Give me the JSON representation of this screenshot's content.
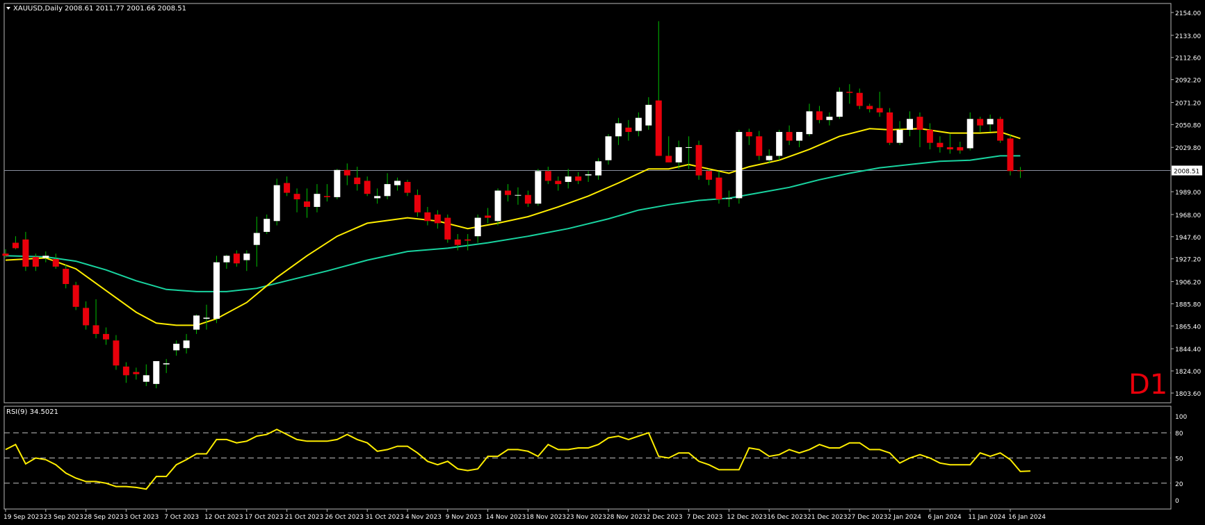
{
  "symbol_header": "XAUUSD,Daily  2008.61 2011.77 2001.66 2008.51",
  "timeframe_label": "D1",
  "rsi_header": "RSI(9) 34.5021",
  "colors": {
    "background": "#000000",
    "bull_candle": "#ffffff",
    "bear_candle": "#e8000b",
    "wick": "#00c000",
    "ma_fast": "#ffee00",
    "ma_slow": "#19d4a0",
    "rsi_line": "#ffee00",
    "grid_line": "#c0c0c0",
    "axis_text": "#ffffff",
    "timeframe_text": "#e8000b"
  },
  "chart_data": [
    {
      "type": "candlestick",
      "title": "XAUUSD,Daily",
      "ohlc_header": [
        2008.61,
        2011.77,
        2001.66,
        2008.51
      ],
      "current_price_label": "2008.51",
      "ylim": [
        1803.6,
        2154.0
      ],
      "y_ticks": [
        "2154.00",
        "2133.00",
        "2112.60",
        "2092.20",
        "2071.20",
        "2050.80",
        "2029.80",
        "2008.51",
        "1989.00",
        "1968.00",
        "1947.60",
        "1927.20",
        "1906.20",
        "1885.80",
        "1865.40",
        "1844.40",
        "1824.00",
        "1803.60"
      ],
      "x_tick_labels": [
        {
          "label": "19 Sep 2023",
          "index": 0
        },
        {
          "label": "23 Sep 2023",
          "index": 4
        },
        {
          "label": "28 Sep 2023",
          "index": 8
        },
        {
          "label": "3 Oct 2023",
          "index": 12
        },
        {
          "label": "7 Oct 2023",
          "index": 16
        },
        {
          "label": "12 Oct 2023",
          "index": 20
        },
        {
          "label": "17 Oct 2023",
          "index": 24
        },
        {
          "label": "21 Oct 2023",
          "index": 28
        },
        {
          "label": "26 Oct 2023",
          "index": 32
        },
        {
          "label": "31 Oct 2023",
          "index": 36
        },
        {
          "label": "4 Nov 2023",
          "index": 40
        },
        {
          "label": "9 Nov 2023",
          "index": 44
        },
        {
          "label": "14 Nov 2023",
          "index": 48
        },
        {
          "label": "18 Nov 2023",
          "index": 52
        },
        {
          "label": "23 Nov 2023",
          "index": 56
        },
        {
          "label": "28 Nov 2023",
          "index": 60
        },
        {
          "label": "2 Dec 2023",
          "index": 64
        },
        {
          "label": "7 Dec 2023",
          "index": 68
        },
        {
          "label": "12 Dec 2023",
          "index": 72
        },
        {
          "label": "16 Dec 2023",
          "index": 76
        },
        {
          "label": "21 Dec 2023",
          "index": 80
        },
        {
          "label": "27 Dec 2023",
          "index": 84
        },
        {
          "label": "2 Jan 2024",
          "index": 88
        },
        {
          "label": "6 Jan 2024",
          "index": 92
        },
        {
          "label": "11 Jan 2024",
          "index": 96
        },
        {
          "label": "16 Jan 2024",
          "index": 100
        }
      ],
      "candles": [
        {
          "o": 1932,
          "h": 1936,
          "l": 1928,
          "c": 1930
        },
        {
          "o": 1942,
          "h": 1948,
          "l": 1936,
          "c": 1937
        },
        {
          "o": 1945,
          "h": 1952,
          "l": 1916,
          "c": 1920
        },
        {
          "o": 1929,
          "h": 1932,
          "l": 1916,
          "c": 1920
        },
        {
          "o": 1928,
          "h": 1934,
          "l": 1924,
          "c": 1930
        },
        {
          "o": 1927,
          "h": 1932,
          "l": 1918,
          "c": 1920
        },
        {
          "o": 1918,
          "h": 1922,
          "l": 1900,
          "c": 1904
        },
        {
          "o": 1903,
          "h": 1906,
          "l": 1880,
          "c": 1883
        },
        {
          "o": 1882,
          "h": 1888,
          "l": 1862,
          "c": 1866
        },
        {
          "o": 1866,
          "h": 1890,
          "l": 1854,
          "c": 1858
        },
        {
          "o": 1858,
          "h": 1864,
          "l": 1848,
          "c": 1853
        },
        {
          "o": 1852,
          "h": 1857,
          "l": 1825,
          "c": 1829
        },
        {
          "o": 1828,
          "h": 1832,
          "l": 1813,
          "c": 1820
        },
        {
          "o": 1823,
          "h": 1827,
          "l": 1816,
          "c": 1821
        },
        {
          "o": 1814,
          "h": 1830,
          "l": 1810,
          "c": 1820
        },
        {
          "o": 1812,
          "h": 1833,
          "l": 1808,
          "c": 1833
        },
        {
          "o": 1830,
          "h": 1835,
          "l": 1822,
          "c": 1831
        },
        {
          "o": 1843,
          "h": 1852,
          "l": 1838,
          "c": 1849
        },
        {
          "o": 1845,
          "h": 1858,
          "l": 1840,
          "c": 1852
        },
        {
          "o": 1862,
          "h": 1876,
          "l": 1858,
          "c": 1875
        },
        {
          "o": 1872,
          "h": 1885,
          "l": 1862,
          "c": 1873
        },
        {
          "o": 1872,
          "h": 1930,
          "l": 1868,
          "c": 1924
        },
        {
          "o": 1924,
          "h": 1931,
          "l": 1918,
          "c": 1930
        },
        {
          "o": 1932,
          "h": 1935,
          "l": 1920,
          "c": 1923
        },
        {
          "o": 1926,
          "h": 1935,
          "l": 1916,
          "c": 1932
        },
        {
          "o": 1940,
          "h": 1966,
          "l": 1920,
          "c": 1951
        },
        {
          "o": 1952,
          "h": 1968,
          "l": 1950,
          "c": 1964
        },
        {
          "o": 1962,
          "h": 2001,
          "l": 1958,
          "c": 1995
        },
        {
          "o": 1997,
          "h": 2003,
          "l": 1985,
          "c": 1988
        },
        {
          "o": 1987,
          "h": 1992,
          "l": 1970,
          "c": 1982
        },
        {
          "o": 1980,
          "h": 1992,
          "l": 1965,
          "c": 1975
        },
        {
          "o": 1975,
          "h": 1996,
          "l": 1970,
          "c": 1987
        },
        {
          "o": 1985,
          "h": 1996,
          "l": 1980,
          "c": 1984
        },
        {
          "o": 1984,
          "h": 2010,
          "l": 1982,
          "c": 2009
        },
        {
          "o": 2009,
          "h": 2015,
          "l": 1995,
          "c": 2004
        },
        {
          "o": 2002,
          "h": 2012,
          "l": 1990,
          "c": 1996
        },
        {
          "o": 1999,
          "h": 2003,
          "l": 1985,
          "c": 1987
        },
        {
          "o": 1983,
          "h": 1992,
          "l": 1978,
          "c": 1985
        },
        {
          "o": 1985,
          "h": 2006,
          "l": 1982,
          "c": 1996
        },
        {
          "o": 1995,
          "h": 2002,
          "l": 1990,
          "c": 1999
        },
        {
          "o": 1998,
          "h": 2000,
          "l": 1985,
          "c": 1988
        },
        {
          "o": 1986,
          "h": 1991,
          "l": 1966,
          "c": 1970
        },
        {
          "o": 1970,
          "h": 1975,
          "l": 1958,
          "c": 1962
        },
        {
          "o": 1968,
          "h": 1972,
          "l": 1955,
          "c": 1960
        },
        {
          "o": 1965,
          "h": 1968,
          "l": 1942,
          "c": 1945
        },
        {
          "o": 1945,
          "h": 1950,
          "l": 1935,
          "c": 1940
        },
        {
          "o": 1945,
          "h": 1950,
          "l": 1935,
          "c": 1944
        },
        {
          "o": 1948,
          "h": 1968,
          "l": 1942,
          "c": 1965
        },
        {
          "o": 1967,
          "h": 1974,
          "l": 1960,
          "c": 1965
        },
        {
          "o": 1962,
          "h": 1992,
          "l": 1958,
          "c": 1990
        },
        {
          "o": 1990,
          "h": 1996,
          "l": 1980,
          "c": 1986
        },
        {
          "o": 1986,
          "h": 1993,
          "l": 1977,
          "c": 1986
        },
        {
          "o": 1986,
          "h": 1990,
          "l": 1975,
          "c": 1978
        },
        {
          "o": 1978,
          "h": 2010,
          "l": 1976,
          "c": 2008
        },
        {
          "o": 2008,
          "h": 2012,
          "l": 1996,
          "c": 1999
        },
        {
          "o": 1999,
          "h": 2003,
          "l": 1990,
          "c": 1996
        },
        {
          "o": 1998,
          "h": 2010,
          "l": 1992,
          "c": 2003
        },
        {
          "o": 2003,
          "h": 2007,
          "l": 1996,
          "c": 1999
        },
        {
          "o": 2004,
          "h": 2008,
          "l": 1998,
          "c": 2005
        },
        {
          "o": 2004,
          "h": 2020,
          "l": 2000,
          "c": 2017
        },
        {
          "o": 2018,
          "h": 2042,
          "l": 2014,
          "c": 2040
        },
        {
          "o": 2040,
          "h": 2057,
          "l": 2032,
          "c": 2052
        },
        {
          "o": 2048,
          "h": 2055,
          "l": 2036,
          "c": 2044
        },
        {
          "o": 2045,
          "h": 2062,
          "l": 2040,
          "c": 2057
        },
        {
          "o": 2050,
          "h": 2076,
          "l": 2046,
          "c": 2069
        },
        {
          "o": 2073,
          "h": 2146,
          "l": 2022,
          "c": 2022
        },
        {
          "o": 2022,
          "h": 2040,
          "l": 2016,
          "c": 2016
        },
        {
          "o": 2016,
          "h": 2036,
          "l": 2010,
          "c": 2030
        },
        {
          "o": 2030,
          "h": 2040,
          "l": 2010,
          "c": 2030
        },
        {
          "o": 2032,
          "h": 2036,
          "l": 2000,
          "c": 2004
        },
        {
          "o": 2008,
          "h": 2010,
          "l": 1995,
          "c": 2000
        },
        {
          "o": 2002,
          "h": 2008,
          "l": 1978,
          "c": 1982
        },
        {
          "o": 1983,
          "h": 1990,
          "l": 1975,
          "c": 1983
        },
        {
          "o": 1983,
          "h": 2046,
          "l": 1978,
          "c": 2044
        },
        {
          "o": 2044,
          "h": 2047,
          "l": 2032,
          "c": 2040
        },
        {
          "o": 2040,
          "h": 2045,
          "l": 2018,
          "c": 2022
        },
        {
          "o": 2018,
          "h": 2028,
          "l": 2015,
          "c": 2022
        },
        {
          "o": 2022,
          "h": 2046,
          "l": 2018,
          "c": 2044
        },
        {
          "o": 2044,
          "h": 2050,
          "l": 2032,
          "c": 2036
        },
        {
          "o": 2036,
          "h": 2044,
          "l": 2030,
          "c": 2044
        },
        {
          "o": 2042,
          "h": 2070,
          "l": 2040,
          "c": 2063
        },
        {
          "o": 2063,
          "h": 2068,
          "l": 2052,
          "c": 2055
        },
        {
          "o": 2055,
          "h": 2062,
          "l": 2050,
          "c": 2058
        },
        {
          "o": 2058,
          "h": 2085,
          "l": 2056,
          "c": 2081
        },
        {
          "o": 2081,
          "h": 2088,
          "l": 2070,
          "c": 2080
        },
        {
          "o": 2080,
          "h": 2084,
          "l": 2065,
          "c": 2068
        },
        {
          "o": 2068,
          "h": 2070,
          "l": 2062,
          "c": 2065
        },
        {
          "o": 2066,
          "h": 2081,
          "l": 2058,
          "c": 2062
        },
        {
          "o": 2062,
          "h": 2066,
          "l": 2032,
          "c": 2034
        },
        {
          "o": 2034,
          "h": 2054,
          "l": 2032,
          "c": 2046
        },
        {
          "o": 2046,
          "h": 2063,
          "l": 2040,
          "c": 2056
        },
        {
          "o": 2058,
          "h": 2062,
          "l": 2030,
          "c": 2046
        },
        {
          "o": 2046,
          "h": 2052,
          "l": 2028,
          "c": 2034
        },
        {
          "o": 2034,
          "h": 2040,
          "l": 2025,
          "c": 2030
        },
        {
          "o": 2030,
          "h": 2042,
          "l": 2024,
          "c": 2028
        },
        {
          "o": 2030,
          "h": 2035,
          "l": 2024,
          "c": 2027
        },
        {
          "o": 2029,
          "h": 2062,
          "l": 2027,
          "c": 2056
        },
        {
          "o": 2056,
          "h": 2058,
          "l": 2044,
          "c": 2050
        },
        {
          "o": 2051,
          "h": 2060,
          "l": 2044,
          "c": 2056
        },
        {
          "o": 2056,
          "h": 2058,
          "l": 2034,
          "c": 2036
        },
        {
          "o": 2038,
          "h": 2042,
          "l": 2004,
          "c": 2008
        },
        {
          "o": 2008.61,
          "h": 2011.77,
          "l": 2001.66,
          "c": 2008.51
        }
      ],
      "ma_fast": [
        {
          "i": 0,
          "v": 1926
        },
        {
          "i": 4,
          "v": 1928
        },
        {
          "i": 7,
          "v": 1918
        },
        {
          "i": 10,
          "v": 1898
        },
        {
          "i": 13,
          "v": 1878
        },
        {
          "i": 15,
          "v": 1868
        },
        {
          "i": 17,
          "v": 1866
        },
        {
          "i": 19,
          "v": 1866
        },
        {
          "i": 21,
          "v": 1872
        },
        {
          "i": 24,
          "v": 1887
        },
        {
          "i": 27,
          "v": 1910
        },
        {
          "i": 30,
          "v": 1930
        },
        {
          "i": 33,
          "v": 1948
        },
        {
          "i": 36,
          "v": 1960
        },
        {
          "i": 40,
          "v": 1965
        },
        {
          "i": 43,
          "v": 1962
        },
        {
          "i": 46,
          "v": 1955
        },
        {
          "i": 49,
          "v": 1960
        },
        {
          "i": 52,
          "v": 1966
        },
        {
          "i": 55,
          "v": 1975
        },
        {
          "i": 58,
          "v": 1985
        },
        {
          "i": 61,
          "v": 1997
        },
        {
          "i": 64,
          "v": 2010
        },
        {
          "i": 66,
          "v": 2010
        },
        {
          "i": 68,
          "v": 2014
        },
        {
          "i": 70,
          "v": 2010
        },
        {
          "i": 72,
          "v": 2006
        },
        {
          "i": 74,
          "v": 2012
        },
        {
          "i": 77,
          "v": 2018
        },
        {
          "i": 80,
          "v": 2028
        },
        {
          "i": 83,
          "v": 2040
        },
        {
          "i": 86,
          "v": 2047
        },
        {
          "i": 88,
          "v": 2046
        },
        {
          "i": 91,
          "v": 2047
        },
        {
          "i": 94,
          "v": 2043
        },
        {
          "i": 97,
          "v": 2043
        },
        {
          "i": 99,
          "v": 2044
        },
        {
          "i": 101,
          "v": 2038
        }
      ],
      "ma_slow": [
        {
          "i": 0,
          "v": 1930
        },
        {
          "i": 4,
          "v": 1929
        },
        {
          "i": 7,
          "v": 1925
        },
        {
          "i": 10,
          "v": 1917
        },
        {
          "i": 13,
          "v": 1907
        },
        {
          "i": 16,
          "v": 1899
        },
        {
          "i": 19,
          "v": 1897
        },
        {
          "i": 22,
          "v": 1897
        },
        {
          "i": 25,
          "v": 1900
        },
        {
          "i": 28,
          "v": 1907
        },
        {
          "i": 32,
          "v": 1916
        },
        {
          "i": 36,
          "v": 1926
        },
        {
          "i": 40,
          "v": 1934
        },
        {
          "i": 44,
          "v": 1937
        },
        {
          "i": 48,
          "v": 1942
        },
        {
          "i": 52,
          "v": 1948
        },
        {
          "i": 56,
          "v": 1955
        },
        {
          "i": 60,
          "v": 1964
        },
        {
          "i": 63,
          "v": 1972
        },
        {
          "i": 66,
          "v": 1977
        },
        {
          "i": 69,
          "v": 1981
        },
        {
          "i": 72,
          "v": 1983
        },
        {
          "i": 75,
          "v": 1988
        },
        {
          "i": 78,
          "v": 1993
        },
        {
          "i": 81,
          "v": 2000
        },
        {
          "i": 84,
          "v": 2006
        },
        {
          "i": 87,
          "v": 2011
        },
        {
          "i": 90,
          "v": 2014
        },
        {
          "i": 93,
          "v": 2017
        },
        {
          "i": 96,
          "v": 2018
        },
        {
          "i": 99,
          "v": 2022
        },
        {
          "i": 101,
          "v": 2022
        }
      ]
    },
    {
      "type": "line",
      "title": "RSI(9) 34.5021",
      "ylim": [
        0,
        100
      ],
      "y_ticks": [
        "100",
        "80",
        "50",
        "20",
        "0"
      ],
      "levels": [
        80,
        50,
        20
      ],
      "values": [
        60,
        66,
        43,
        50,
        48,
        42,
        32,
        26,
        22,
        22,
        20,
        16,
        16,
        15,
        13,
        28,
        28,
        42,
        48,
        55,
        55,
        72,
        72,
        68,
        70,
        76,
        78,
        84,
        78,
        72,
        70,
        70,
        70,
        72,
        78,
        72,
        68,
        58,
        60,
        64,
        64,
        56,
        46,
        42,
        46,
        37,
        35,
        37,
        52,
        52,
        60,
        60,
        58,
        52,
        66,
        60,
        60,
        62,
        62,
        66,
        74,
        76,
        72,
        76,
        80,
        52,
        50,
        56,
        56,
        46,
        42,
        36,
        36,
        36,
        62,
        60,
        52,
        54,
        60,
        56,
        60,
        66,
        62,
        62,
        68,
        68,
        60,
        60,
        56,
        44,
        50,
        54,
        50,
        44,
        42,
        42,
        42,
        56,
        52,
        56,
        48,
        34,
        34.5
      ]
    }
  ]
}
